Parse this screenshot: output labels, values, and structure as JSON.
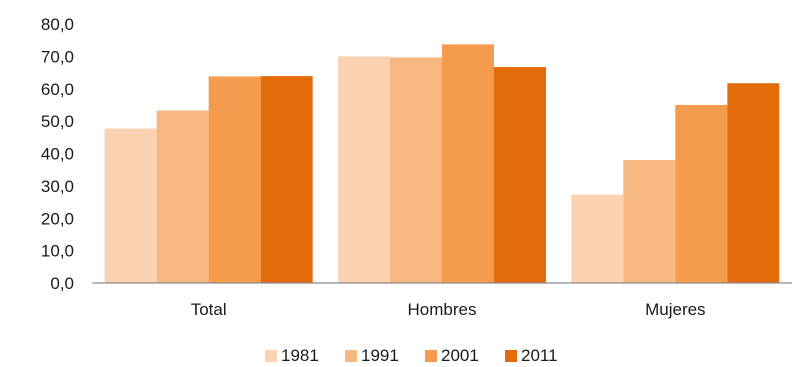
{
  "chart_data": {
    "type": "bar",
    "categories": [
      "Total",
      "Hombres",
      "Mujeres"
    ],
    "series": [
      {
        "name": "1981",
        "color": "#fbd3b3",
        "values": [
          47.7,
          70.0,
          27.3
        ]
      },
      {
        "name": "1991",
        "color": "#f8b882",
        "values": [
          53.3,
          69.7,
          38.0
        ]
      },
      {
        "name": "2001",
        "color": "#f49b4e",
        "values": [
          63.8,
          73.7,
          55.0
        ]
      },
      {
        "name": "2011",
        "color": "#e46c0a",
        "values": [
          63.9,
          66.7,
          61.7
        ]
      }
    ],
    "y_ticks": [
      "0,0",
      "10,0",
      "20,0",
      "30,0",
      "40,0",
      "50,0",
      "60,0",
      "70,0",
      "80,0"
    ],
    "ylim": [
      0,
      80
    ],
    "grid": false,
    "legend_position": "bottom"
  }
}
